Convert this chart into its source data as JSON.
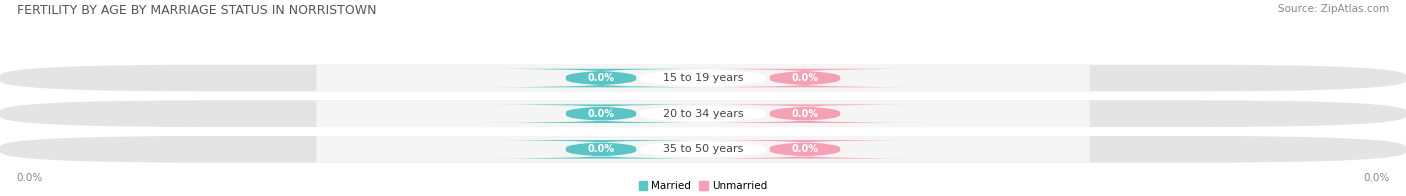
{
  "title": "FERTILITY BY AGE BY MARRIAGE STATUS IN NORRISTOWN",
  "source": "Source: ZipAtlas.com",
  "categories": [
    "15 to 19 years",
    "20 to 34 years",
    "35 to 50 years"
  ],
  "married_values": [
    0.0,
    0.0,
    0.0
  ],
  "unmarried_values": [
    0.0,
    0.0,
    0.0
  ],
  "married_color": "#5bc4c4",
  "unmarried_color": "#f5a0b5",
  "bar_bg_color": "#e4e4e4",
  "bar_center_color": "#f5f5f5",
  "title_fontsize": 9,
  "source_fontsize": 7.5,
  "label_fontsize": 7.5,
  "bar_label_fontsize": 7,
  "cat_label_fontsize": 8,
  "axis_label_left": "0.0%",
  "axis_label_right": "0.0%",
  "legend_married": "Married",
  "legend_unmarried": "Unmarried",
  "bg_color": "#ffffff"
}
